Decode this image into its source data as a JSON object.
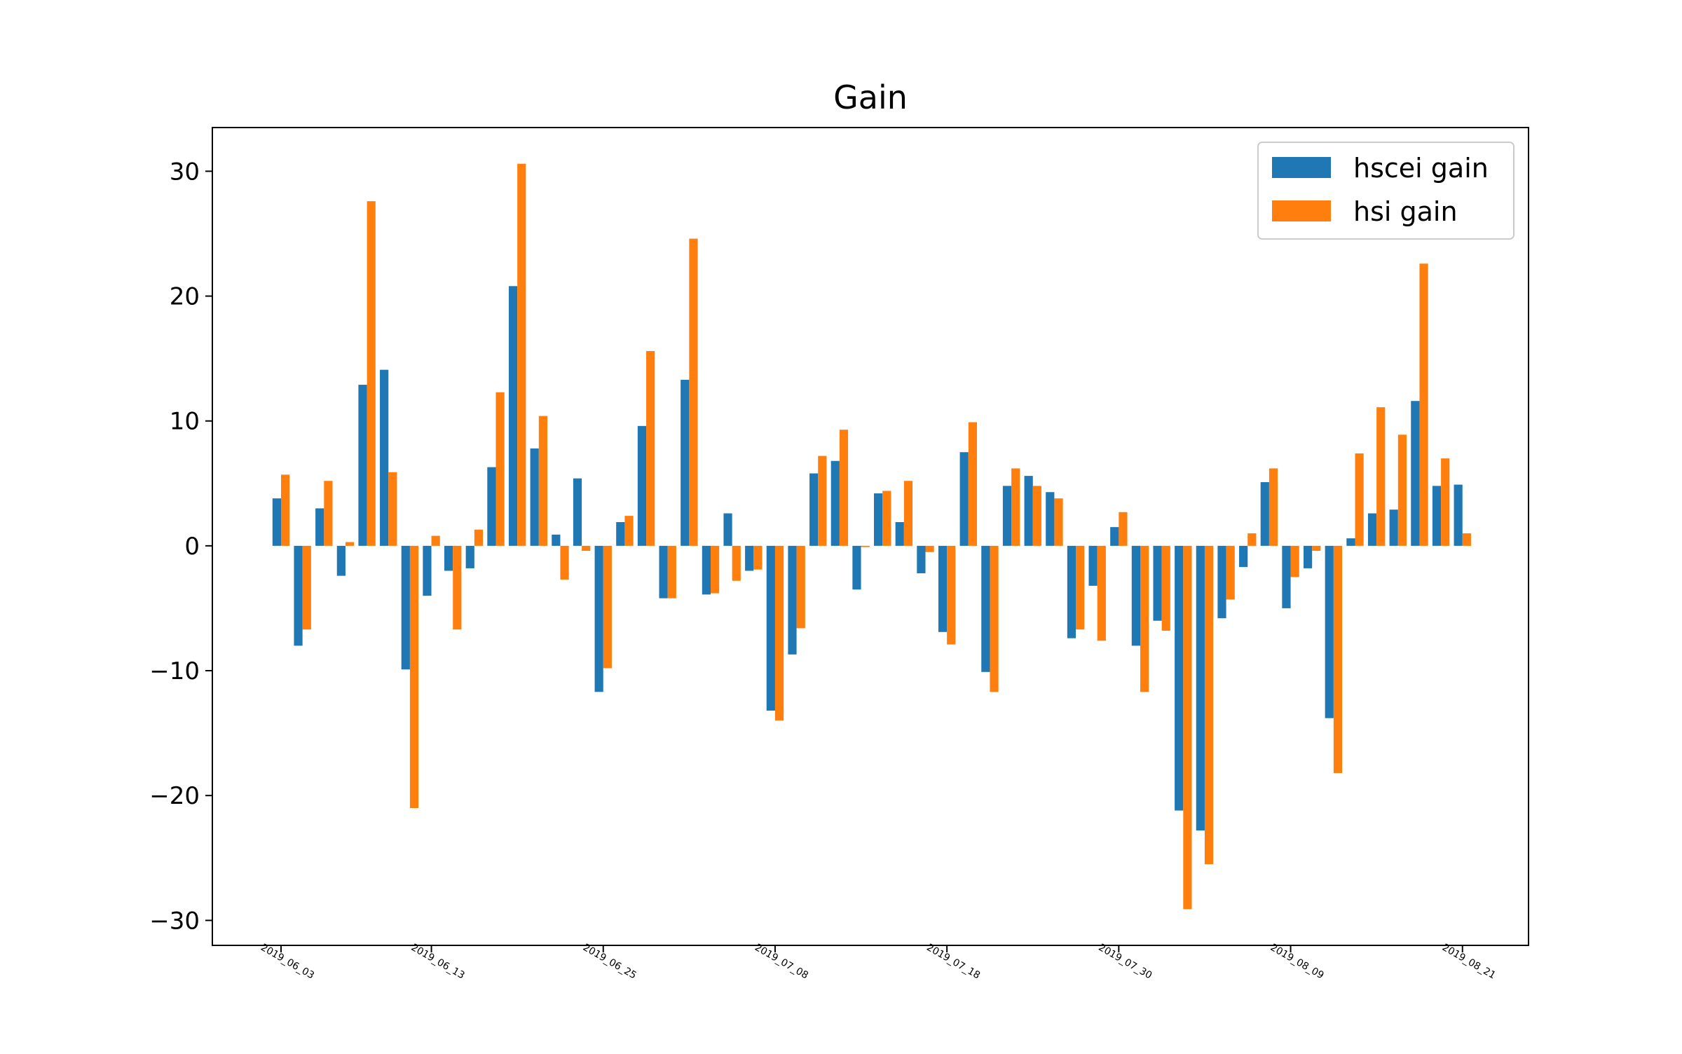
{
  "chart_data": {
    "type": "bar",
    "title": "Gain",
    "xlabel": "",
    "ylabel": "",
    "ylim": [
      -32,
      33.5
    ],
    "y_ticks": [
      -30,
      -20,
      -10,
      0,
      10,
      20,
      30
    ],
    "y_tick_labels": [
      "−30",
      "−20",
      "−10",
      "0",
      "10",
      "20",
      "30"
    ],
    "x_ticks": [
      {
        "index": 0,
        "label": "2019_06_03"
      },
      {
        "index": 7,
        "label": "2019_06_13"
      },
      {
        "index": 15,
        "label": "2019_06_25"
      },
      {
        "index": 23,
        "label": "2019_07_08"
      },
      {
        "index": 31,
        "label": "2019_07_18"
      },
      {
        "index": 39,
        "label": "2019_07_30"
      },
      {
        "index": 47,
        "label": "2019_08_09"
      },
      {
        "index": 55,
        "label": "2019_08_21"
      }
    ],
    "grid": false,
    "legend_position": "top-right",
    "series": [
      {
        "name": "hscei gain",
        "color": "#1f77b4",
        "values": [
          3.8,
          -8.0,
          3.0,
          -2.4,
          12.9,
          14.1,
          -9.9,
          -4.0,
          -2.0,
          -1.8,
          6.3,
          20.8,
          7.8,
          0.9,
          5.4,
          -11.7,
          1.9,
          9.6,
          -4.2,
          13.3,
          -3.9,
          2.6,
          -2.0,
          -13.2,
          -8.7,
          5.8,
          6.8,
          -3.5,
          4.2,
          1.9,
          -2.2,
          -6.9,
          7.5,
          -10.1,
          4.8,
          5.6,
          4.3,
          -7.4,
          -3.2,
          1.5,
          -8.0,
          -6.0,
          -21.2,
          -22.8,
          -5.8,
          -1.7,
          5.1,
          -5.0,
          -1.8,
          -13.8,
          0.6,
          2.6,
          2.9,
          11.6,
          4.8,
          4.9
        ]
      },
      {
        "name": "hsi gain",
        "color": "#ff7f0e",
        "values": [
          5.7,
          -6.7,
          5.2,
          0.3,
          27.6,
          5.9,
          -21.0,
          0.8,
          -6.7,
          1.3,
          12.3,
          30.6,
          10.4,
          -2.7,
          -0.4,
          -9.8,
          2.4,
          15.6,
          -4.2,
          24.6,
          -3.8,
          -2.8,
          -1.9,
          -14.0,
          -6.6,
          7.2,
          9.3,
          -0.1,
          4.4,
          5.2,
          -0.5,
          -7.9,
          9.9,
          -11.7,
          6.2,
          4.8,
          3.8,
          -6.7,
          -7.6,
          2.7,
          -11.7,
          -6.8,
          -29.1,
          -25.5,
          -4.3,
          1.0,
          6.2,
          -2.5,
          -0.4,
          -18.2,
          7.4,
          11.1,
          8.9,
          22.6,
          7.0,
          1.0
        ]
      }
    ]
  }
}
